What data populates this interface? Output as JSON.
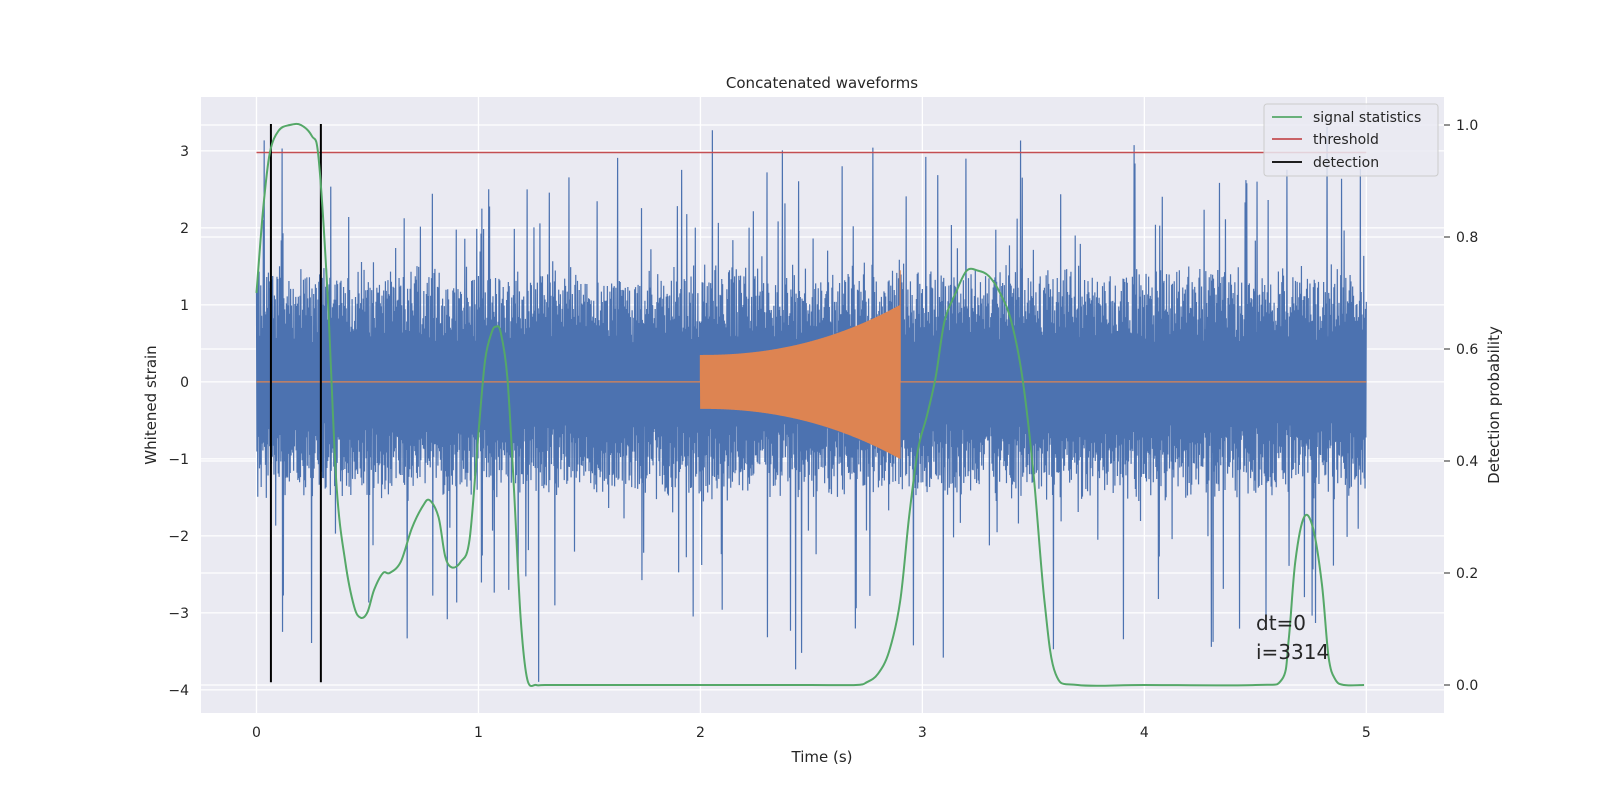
{
  "chart_data": {
    "type": "line",
    "title": "Concatenated waveforms",
    "xlabel": "Time (s)",
    "ylabel": "Whitened strain",
    "y2label": "Detection probability",
    "xlim": [
      -0.25,
      5.35
    ],
    "ylim": [
      -4.3,
      3.7
    ],
    "y2lim": [
      -0.05,
      1.05
    ],
    "xticks": [
      0,
      1,
      2,
      3,
      4,
      5
    ],
    "yticks": [
      -4,
      -3,
      -2,
      -1,
      0,
      1,
      2,
      3
    ],
    "y2ticks": [
      0.0,
      0.2,
      0.4,
      0.6,
      0.8,
      1.0
    ],
    "grid": true,
    "legend_position": "top-right",
    "legend": [
      "signal statistics",
      "threshold",
      "detection"
    ],
    "annotations": [
      "dt=0",
      "i=3314"
    ],
    "colors": {
      "strain": "#4c72b0",
      "injection": "#dd8452",
      "signal_statistics": "#55a868",
      "threshold": "#c44e52",
      "detection": "#000000",
      "plot_bg": "#eaeaf2"
    },
    "series": [
      {
        "name": "",
        "axis": "left",
        "description_kind": "noise",
        "x_range": [
          0,
          5
        ],
        "typical_abs": 1.3,
        "peak_up": 3.3,
        "peak_down": -3.9
      },
      {
        "name": "",
        "axis": "left",
        "description_kind": "chirp",
        "x_range": [
          2.0,
          2.9
        ],
        "amp_start": 0.35,
        "amp_end": 1.0
      },
      {
        "name": "threshold",
        "axis": "left",
        "x": [
          0,
          5
        ],
        "y": [
          2.98,
          2.98
        ]
      },
      {
        "name": "detection",
        "axis": "left",
        "x_positions": [
          0.065,
          0.29
        ],
        "y": [
          -3.9,
          3.35
        ]
      },
      {
        "name": "signal statistics",
        "axis": "right",
        "x": [
          0.0,
          0.03,
          0.06,
          0.1,
          0.15,
          0.2,
          0.25,
          0.28,
          0.32,
          0.36,
          0.4,
          0.44,
          0.47,
          0.5,
          0.53,
          0.57,
          0.6,
          0.65,
          0.7,
          0.75,
          0.78,
          0.82,
          0.85,
          0.88,
          0.92,
          0.96,
          1.0,
          1.03,
          1.06,
          1.08,
          1.1,
          1.13,
          1.16,
          1.19,
          1.22,
          1.26,
          1.3,
          1.5,
          2.0,
          2.5,
          2.7,
          2.75,
          2.8,
          2.85,
          2.9,
          2.94,
          2.98,
          3.02,
          3.06,
          3.1,
          3.15,
          3.2,
          3.25,
          3.3,
          3.35,
          3.4,
          3.45,
          3.5,
          3.55,
          3.6,
          3.7,
          4.0,
          4.5,
          4.62,
          4.65,
          4.68,
          4.72,
          4.76,
          4.8,
          4.83,
          4.86,
          4.9,
          4.99
        ],
        "y": [
          0.7,
          0.85,
          0.95,
          0.99,
          1.0,
          1.0,
          0.98,
          0.94,
          0.7,
          0.36,
          0.22,
          0.14,
          0.12,
          0.13,
          0.17,
          0.2,
          0.2,
          0.22,
          0.28,
          0.32,
          0.33,
          0.3,
          0.23,
          0.21,
          0.22,
          0.26,
          0.45,
          0.58,
          0.63,
          0.64,
          0.63,
          0.55,
          0.35,
          0.12,
          0.01,
          0.0,
          0.0,
          0.0,
          0.0,
          0.0,
          0.0,
          0.005,
          0.02,
          0.06,
          0.15,
          0.3,
          0.42,
          0.48,
          0.55,
          0.65,
          0.7,
          0.74,
          0.74,
          0.73,
          0.7,
          0.65,
          0.55,
          0.38,
          0.15,
          0.02,
          0.0,
          0.0,
          0.0,
          0.01,
          0.08,
          0.22,
          0.3,
          0.28,
          0.18,
          0.05,
          0.01,
          0.0,
          0.0
        ]
      }
    ]
  }
}
